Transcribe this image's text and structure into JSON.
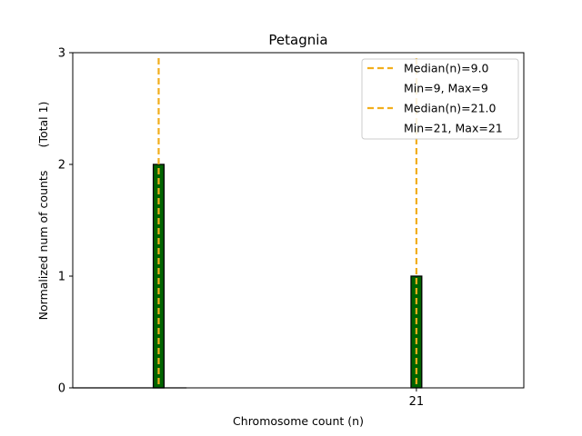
{
  "chart_data": {
    "type": "bar",
    "title": "Petagnia",
    "xlabel": "Chromosome count (n)",
    "ylabel": "Normalized num of counts",
    "ylabel_extra": "(Total 1)",
    "xlim": [
      5,
      26
    ],
    "ylim": [
      0,
      3
    ],
    "x_ticks": [
      {
        "value": 21,
        "label": "21"
      }
    ],
    "y_ticks": [
      {
        "value": 0,
        "label": "0"
      },
      {
        "value": 1,
        "label": "1"
      },
      {
        "value": 2,
        "label": "2"
      },
      {
        "value": 3,
        "label": "3"
      }
    ],
    "bars": [
      {
        "x": 9,
        "value": 2,
        "width": 0.5
      },
      {
        "x": 21,
        "value": 1,
        "width": 0.5
      }
    ],
    "bar_color": "#006400",
    "bar_edge_color": "#000000",
    "median_lines": [
      {
        "x": 9,
        "label": "Median(n)=9.0",
        "sublabel": "Min=9, Max=9"
      },
      {
        "x": 21,
        "label": "Median(n)=21.0",
        "sublabel": "Min=21, Max=21"
      }
    ],
    "median_color": "#f2ae1c",
    "legend_position": "top-right",
    "grid": false
  }
}
